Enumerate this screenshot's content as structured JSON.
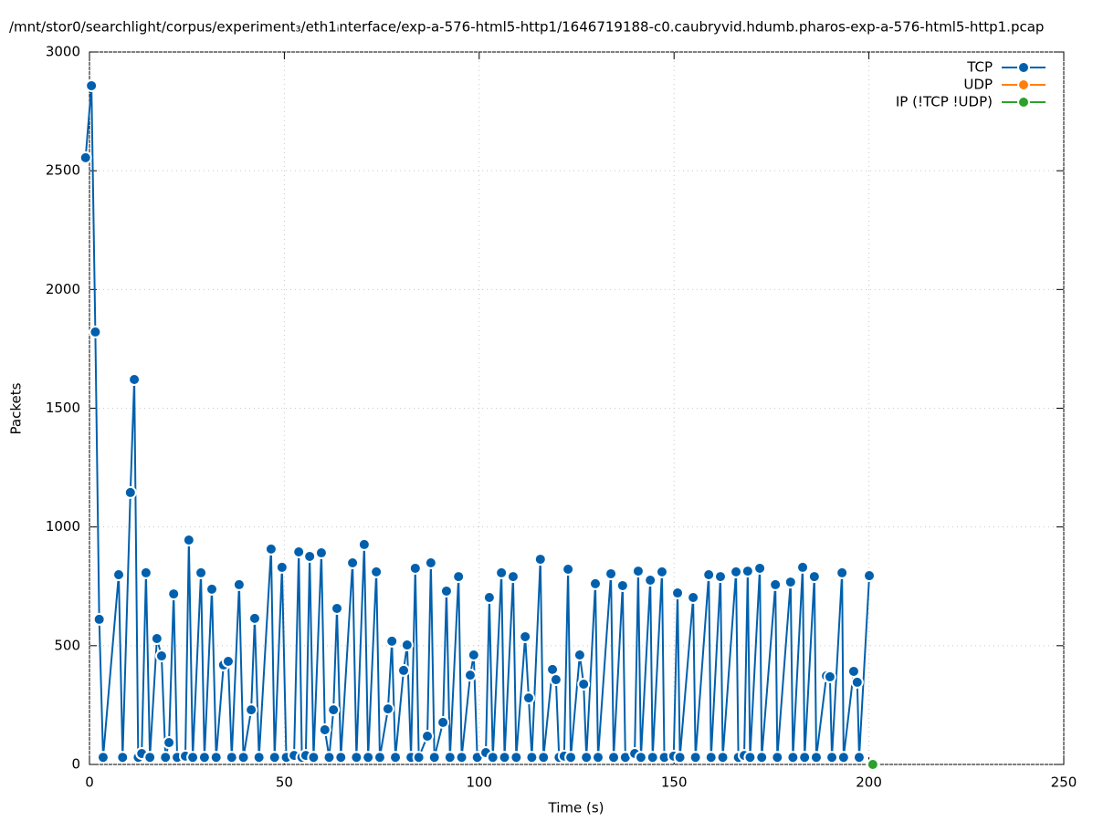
{
  "chart_data": {
    "type": "line",
    "title": "/mnt/stor0/searchlight/corpus/experiment₃/eth1ᵢnterface/exp-a-576-html5-http1/1646719188-c0.caubryvid.hdumb.pharos-exp-a-576-html5-http1.pcap",
    "x_label": "Time (s)",
    "y_label": "Packets",
    "xlim": [
      0,
      250
    ],
    "xticks": [
      0,
      50,
      100,
      150,
      200,
      250
    ],
    "ylim": [
      0,
      3000
    ],
    "yticks": [
      0,
      500,
      1000,
      1500,
      2000,
      2500,
      3000
    ],
    "grid": true,
    "legend": "top-right",
    "series": [
      {
        "name": "TCP",
        "color": "#0060ad",
        "x": [
          -1,
          0.5,
          1.5,
          2.5,
          3.5,
          7.5,
          8.5,
          10.5,
          11.5,
          12.5,
          13.4,
          14.5,
          15.5,
          17.3,
          18.5,
          19.5,
          20.4,
          21.6,
          22.5,
          24.6,
          25.5,
          26.5,
          28.6,
          29.5,
          31.4,
          32.5,
          34.4,
          35.6,
          36.5,
          38.4,
          39.5,
          41.5,
          42.4,
          43.5,
          46.6,
          47.5,
          49.4,
          50.5,
          52.5,
          53.7,
          54.5,
          55.5,
          56.5,
          57.5,
          59.5,
          60.4,
          61.5,
          62.6,
          63.5,
          64.5,
          67.5,
          68.5,
          70.5,
          71.5,
          73.6,
          74.5,
          76.6,
          77.6,
          78.5,
          80.6,
          81.5,
          82.5,
          83.6,
          84.5,
          86.7,
          87.6,
          88.5,
          90.7,
          91.6,
          92.5,
          94.7,
          95.5,
          97.7,
          98.6,
          99.5,
          101.7,
          102.6,
          103.5,
          105.7,
          106.5,
          108.7,
          109.5,
          111.8,
          112.7,
          113.5,
          115.7,
          116.5,
          118.8,
          119.7,
          120.5,
          121.8,
          122.8,
          123.5,
          125.8,
          126.8,
          127.5,
          129.8,
          130.5,
          133.8,
          134.5,
          136.8,
          137.5,
          139.9,
          140.8,
          141.5,
          143.9,
          144.5,
          146.9,
          147.5,
          149.9,
          150.9,
          151.5,
          154.9,
          155.5,
          158.9,
          159.5,
          161.9,
          162.5,
          165.9,
          166.5,
          168.0,
          168.9,
          169.5,
          172.0,
          172.5,
          176.0,
          176.5,
          179.9,
          180.5,
          183.0,
          183.5,
          186.0,
          186.5,
          189.1,
          190.0,
          190.5,
          193.1,
          193.5,
          196.1,
          197.0,
          197.5,
          200.1
        ],
        "values": [
          2555,
          2858,
          1821,
          611,
          30,
          799,
          30,
          1145,
          1621,
          30,
          46,
          807,
          30,
          530,
          457,
          30,
          92,
          718,
          30,
          35,
          945,
          30,
          807,
          30,
          738,
          30,
          419,
          434,
          30,
          757,
          30,
          230,
          615,
          30,
          907,
          30,
          830,
          30,
          38,
          895,
          30,
          38,
          876,
          30,
          891,
          146,
          30,
          230,
          657,
          30,
          849,
          30,
          926,
          30,
          811,
          30,
          234,
          519,
          30,
          396,
          503,
          30,
          826,
          30,
          119,
          849,
          30,
          177,
          730,
          30,
          791,
          30,
          376,
          461,
          30,
          50,
          703,
          30,
          807,
          30,
          791,
          30,
          538,
          280,
          30,
          864,
          30,
          400,
          357,
          30,
          35,
          822,
          30,
          461,
          338,
          30,
          761,
          30,
          803,
          30,
          753,
          30,
          46,
          814,
          30,
          776,
          30,
          811,
          30,
          35,
          722,
          30,
          703,
          30,
          799,
          30,
          791,
          30,
          811,
          30,
          38,
          814,
          30,
          826,
          30,
          757,
          30,
          768,
          30,
          830,
          30,
          791,
          30,
          373,
          369,
          30,
          807,
          30,
          392,
          346,
          30,
          795
        ]
      },
      {
        "name": "UDP",
        "color": "#ff7f0e",
        "x": [],
        "values": []
      },
      {
        "name": "IP (!TCP  !UDP)",
        "color": "#2ca02c",
        "x": [
          201
        ],
        "values": [
          0
        ]
      }
    ]
  }
}
